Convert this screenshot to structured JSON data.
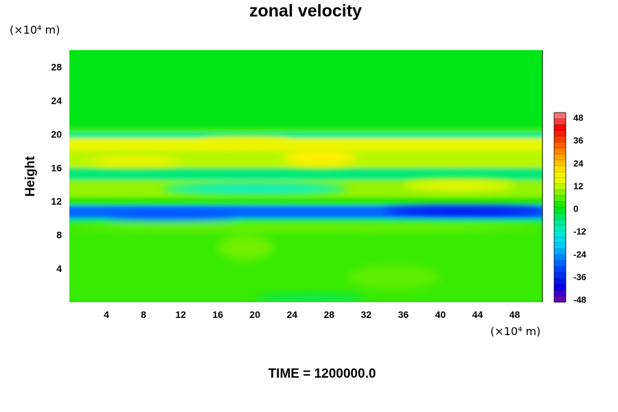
{
  "chart_data": {
    "type": "heatmap",
    "title": "zonal velocity",
    "xlabel": "",
    "ylabel": "Height",
    "x_unit": "(×10⁴ m)",
    "y_unit": "(×10⁴ m)",
    "xlim": [
      0,
      51
    ],
    "ylim": [
      0,
      30
    ],
    "xticks": [
      "4",
      "8",
      "12",
      "16",
      "20",
      "24",
      "28",
      "32",
      "36",
      "40",
      "44",
      "48"
    ],
    "yticks": [
      "4",
      "8",
      "12",
      "16",
      "20",
      "24",
      "28"
    ],
    "colorbar": {
      "ticks": [
        "48",
        "36",
        "24",
        "12",
        "0",
        "-12",
        "-24",
        "-36",
        "-48"
      ],
      "min": -48,
      "max": 48,
      "levels": 32
    },
    "bands": [
      {
        "y": [
          0,
          9.5
        ],
        "value": 3
      },
      {
        "y": [
          9.5,
          10
        ],
        "value": -6
      },
      {
        "y": [
          10,
          11.5
        ],
        "value": -28
      },
      {
        "y": [
          11.5,
          12.5
        ],
        "value": 2
      },
      {
        "y": [
          12.5,
          14.5
        ],
        "value": 8
      },
      {
        "y": [
          14.5,
          16
        ],
        "value": -6
      },
      {
        "y": [
          16,
          18
        ],
        "value": 10
      },
      {
        "y": [
          18,
          19.5
        ],
        "value": 14
      },
      {
        "y": [
          19.5,
          20.2
        ],
        "value": -8
      },
      {
        "y": [
          20.2,
          20.6
        ],
        "value": 4
      },
      {
        "y": [
          20.6,
          30
        ],
        "value": -1
      }
    ],
    "features": [
      {
        "x": [
          34,
          51
        ],
        "y": [
          10.4,
          11.3
        ],
        "value": -40
      },
      {
        "x": [
          4,
          18
        ],
        "y": [
          9.8,
          10.7
        ],
        "value": -30
      },
      {
        "x": [
          10,
          30
        ],
        "y": [
          12.8,
          14.2
        ],
        "value": -12
      },
      {
        "x": [
          36,
          48
        ],
        "y": [
          13.2,
          14.6
        ],
        "value": 14
      },
      {
        "x": [
          23,
          31
        ],
        "y": [
          16.2,
          18.2
        ],
        "value": 18
      },
      {
        "x": [
          2,
          12
        ],
        "y": [
          16.2,
          17.4
        ],
        "value": 16
      },
      {
        "x": [
          14,
          24
        ],
        "y": [
          18.6,
          19.6
        ],
        "value": 16
      },
      {
        "x": [
          0,
          51
        ],
        "y": [
          8.5,
          9.3
        ],
        "value": 7
      },
      {
        "x": [
          16,
          22
        ],
        "y": [
          5,
          8
        ],
        "value": 6
      },
      {
        "x": [
          30,
          40
        ],
        "y": [
          1.5,
          4.5
        ],
        "value": 5
      },
      {
        "x": [
          20,
          32
        ],
        "y": [
          0,
          1
        ],
        "value": -4
      }
    ]
  },
  "footer": {
    "time_label": "TIME = 1200000.0"
  }
}
